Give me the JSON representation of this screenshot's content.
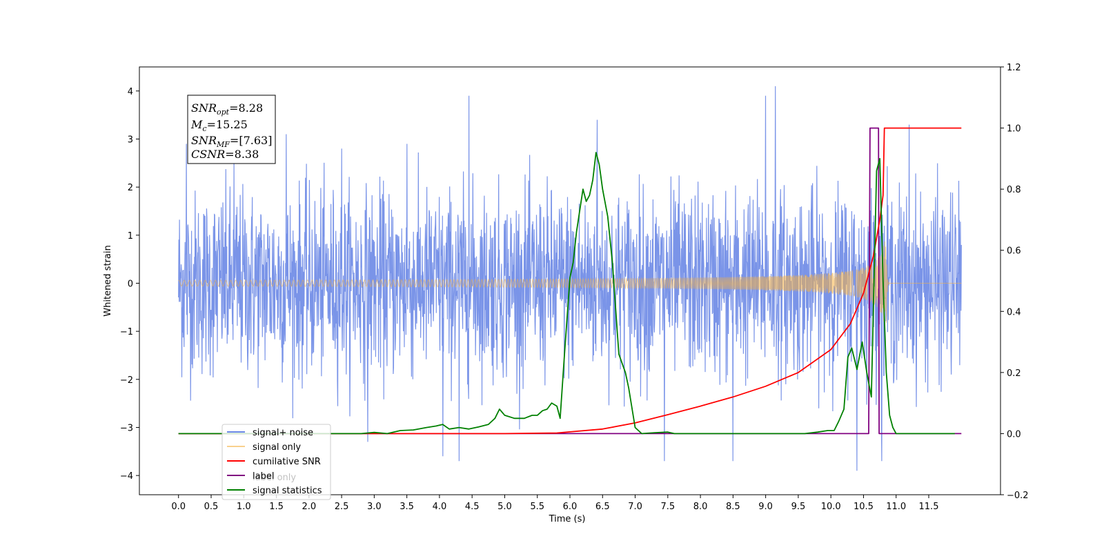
{
  "chart_data": {
    "type": "line",
    "xlabel": "Time (s)",
    "ylabel_left": "Whitened strain",
    "ylabel_right": "",
    "x_ticks": [
      "0.0",
      "0.5",
      "1.0",
      "1.5",
      "2.0",
      "2.5",
      "3.0",
      "3.5",
      "4.0",
      "4.5",
      "5.0",
      "5.5",
      "6.0",
      "6.5",
      "7.0",
      "7.5",
      "8.0",
      "8.5",
      "9.0",
      "9.5",
      "10.0",
      "10.5",
      "11.0",
      "11.5"
    ],
    "y_left_ticks": [
      "4",
      "3",
      "2",
      "1",
      "0",
      "−1",
      "−2",
      "−3",
      "−4"
    ],
    "y_right_ticks": [
      "1.2",
      "1.0",
      "0.8",
      "0.6",
      "0.4",
      "0.2",
      "0.0",
      "−0.2"
    ],
    "xlim": [
      -0.6,
      12.6
    ],
    "ylim_left": [
      -4.4,
      4.5
    ],
    "ylim_right": [
      -0.2,
      1.2
    ],
    "duration": 12.0,
    "colors": {
      "signal_noise": "#6b88e6",
      "signal_only": "#f5b041",
      "cumulative_snr": "#ff0000",
      "label": "#800080",
      "signal_statistics": "#008000"
    },
    "info_box": {
      "snr_opt": {
        "symbol": "SNR",
        "sub": "opt",
        "value": "=8.28"
      },
      "mc": {
        "symbol": "M",
        "sub": "c",
        "value": "=15.25"
      },
      "snr_mf": {
        "symbol": "SNR",
        "sub": "MF",
        "value": "=[7.63]"
      },
      "csnr": {
        "symbol": "CSNR",
        "sub": "",
        "value": "=8.38"
      }
    },
    "legend": {
      "placement": "lower-left",
      "entries": [
        "signal+ noise",
        "signal only",
        "cumilative SNR",
        "label",
        "signal statistics"
      ],
      "obscured_text": "label only"
    },
    "series": [
      {
        "name": "signal+ noise",
        "kind": "noise",
        "axis": "left",
        "typical_range": [
          -2.4,
          2.4
        ],
        "peaks": [
          [
            0.12,
            2.9
          ],
          [
            0.85,
            2.6
          ],
          [
            1.65,
            3.1
          ],
          [
            2.5,
            2.8
          ],
          [
            3.5,
            2.9
          ],
          [
            4.45,
            3.9
          ],
          [
            4.05,
            -3.6
          ],
          [
            4.3,
            -3.7
          ],
          [
            6.42,
            3.4
          ],
          [
            7.45,
            -3.7
          ],
          [
            8.5,
            -3.7
          ],
          [
            9.15,
            4.1
          ],
          [
            9.0,
            3.9
          ],
          [
            10.4,
            -3.9
          ],
          [
            10.78,
            3.6
          ],
          [
            10.78,
            -3.7
          ],
          [
            2.9,
            -3.3
          ],
          [
            11.2,
            3.3
          ]
        ]
      },
      {
        "name": "signal only",
        "kind": "chirp",
        "axis": "left",
        "merger_time": 10.85,
        "peak_amplitude": 0.9
      },
      {
        "name": "cumilative SNR",
        "axis": "right",
        "x": [
          0.0,
          5.0,
          5.8,
          6.5,
          7.0,
          7.5,
          8.0,
          8.5,
          9.0,
          9.5,
          10.0,
          10.3,
          10.5,
          10.65,
          10.75,
          10.8,
          10.82,
          12.0
        ],
        "y": [
          0.0,
          0.0,
          0.002,
          0.015,
          0.035,
          0.062,
          0.09,
          0.12,
          0.155,
          0.2,
          0.275,
          0.36,
          0.46,
          0.58,
          0.7,
          0.78,
          1.0,
          1.0
        ]
      },
      {
        "name": "label",
        "axis": "right",
        "x": [
          0.0,
          10.58,
          10.6,
          10.73,
          10.74,
          12.0
        ],
        "y": [
          0.0,
          0.0,
          1.0,
          1.0,
          0.0,
          0.0
        ]
      },
      {
        "name": "signal statistics",
        "axis": "right",
        "x": [
          0.0,
          2.8,
          3.0,
          3.2,
          3.4,
          3.6,
          3.8,
          3.95,
          4.05,
          4.15,
          4.3,
          4.45,
          4.6,
          4.75,
          4.85,
          4.92,
          5.0,
          5.15,
          5.3,
          5.42,
          5.5,
          5.58,
          5.65,
          5.72,
          5.8,
          5.85,
          5.92,
          6.0,
          6.05,
          6.1,
          6.2,
          6.25,
          6.3,
          6.35,
          6.4,
          6.45,
          6.5,
          6.58,
          6.65,
          6.75,
          6.85,
          6.9,
          7.0,
          7.1,
          7.3,
          7.5,
          7.6,
          7.8,
          8.0,
          8.5,
          9.0,
          9.3,
          9.6,
          9.8,
          9.95,
          10.05,
          10.12,
          10.2,
          10.26,
          10.32,
          10.4,
          10.48,
          10.55,
          10.62,
          10.7,
          10.75,
          10.8,
          10.85,
          10.9,
          10.95,
          11.0,
          11.05,
          11.1,
          11.5,
          11.9
        ],
        "y": [
          0.0,
          0.0,
          0.004,
          0.0,
          0.01,
          0.012,
          0.02,
          0.025,
          0.03,
          0.015,
          0.02,
          0.015,
          0.022,
          0.03,
          0.05,
          0.08,
          0.06,
          0.05,
          0.05,
          0.06,
          0.06,
          0.075,
          0.08,
          0.1,
          0.09,
          0.05,
          0.27,
          0.51,
          0.56,
          0.66,
          0.8,
          0.76,
          0.78,
          0.83,
          0.92,
          0.88,
          0.8,
          0.71,
          0.56,
          0.26,
          0.2,
          0.15,
          0.02,
          0.0,
          0.003,
          0.005,
          0.0,
          0.0,
          0.0,
          0.0,
          0.0,
          0.0,
          0.0,
          0.005,
          0.01,
          0.01,
          0.04,
          0.08,
          0.25,
          0.28,
          0.21,
          0.3,
          0.2,
          0.12,
          0.86,
          0.9,
          0.5,
          0.2,
          0.06,
          0.02,
          0.0,
          0.0,
          0.0,
          0.0,
          0.0
        ]
      }
    ]
  }
}
